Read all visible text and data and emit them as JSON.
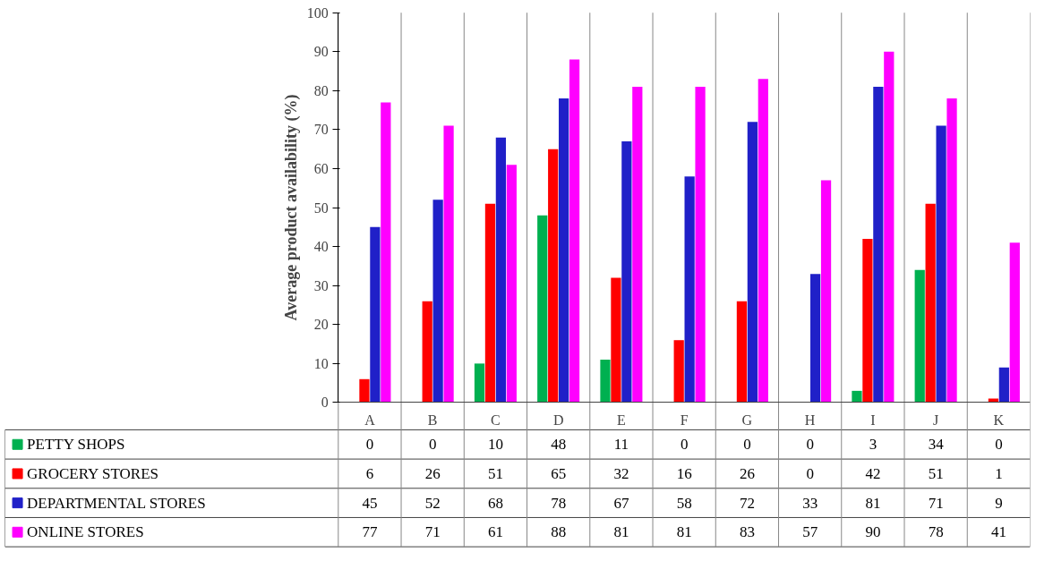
{
  "chart_data": {
    "type": "bar",
    "ylabel": "Average product availability (%)",
    "categories": [
      "A",
      "B",
      "C",
      "D",
      "E",
      "F",
      "G",
      "H",
      "I",
      "J",
      "K"
    ],
    "series": [
      {
        "name": "PETTY SHOPS",
        "color": "#00b050",
        "values": [
          0,
          0,
          10,
          48,
          11,
          0,
          0,
          0,
          3,
          34,
          0
        ]
      },
      {
        "name": "GROCERY STORES",
        "color": "#ff0000",
        "values": [
          6,
          26,
          51,
          65,
          32,
          16,
          26,
          0,
          42,
          51,
          1
        ]
      },
      {
        "name": "DEPARTMENTAL STORES",
        "color": "#2020c8",
        "values": [
          45,
          52,
          68,
          78,
          67,
          58,
          72,
          33,
          81,
          71,
          9
        ]
      },
      {
        "name": "ONLINE STORES",
        "color": "#ff00ff",
        "values": [
          77,
          71,
          61,
          88,
          81,
          81,
          83,
          57,
          90,
          78,
          41
        ]
      }
    ],
    "ylim": [
      0,
      100
    ],
    "yticks": [
      0,
      10,
      20,
      30,
      40,
      50,
      60,
      70,
      80,
      90,
      100
    ],
    "grid": false,
    "legend": "bottom",
    "data_labels": true
  }
}
